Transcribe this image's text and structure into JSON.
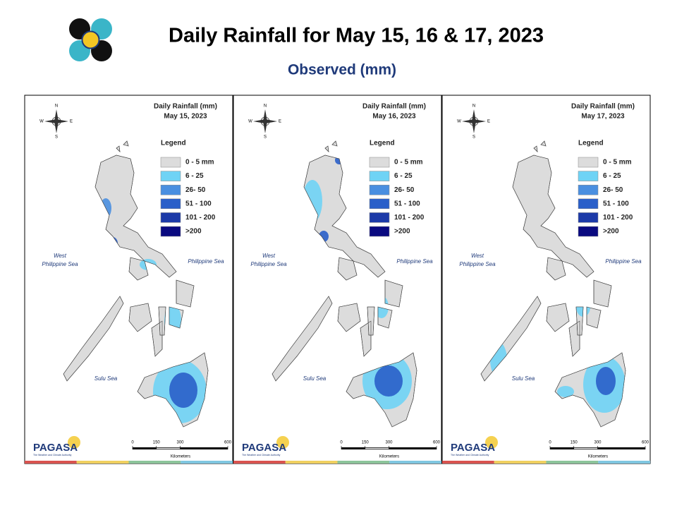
{
  "header": {
    "title": "Daily Rainfall for May 15, 16 & 17, 2023",
    "subtitle": "Observed (mm)"
  },
  "panels": [
    {
      "title": "Daily Rainfall (mm)",
      "date": "May 15, 2023"
    },
    {
      "title": "Daily Rainfall (mm)",
      "date": "May 16, 2023"
    },
    {
      "title": "Daily Rainfall (mm)",
      "date": "May 17, 2023"
    }
  ],
  "legend": {
    "title": "Legend",
    "items": [
      {
        "label": "0 - 5 mm",
        "color": "#dcdcdc"
      },
      {
        "label": "6 - 25",
        "color": "#6fd3f5"
      },
      {
        "label": "26- 50",
        "color": "#4a8fe0"
      },
      {
        "label": "51 - 100",
        "color": "#2a5fc9"
      },
      {
        "label": "101 - 200",
        "color": "#1c3aa8"
      },
      {
        "label": ">200",
        "color": "#0a0a80"
      }
    ]
  },
  "seas": {
    "west": [
      "West",
      "Philippine Sea"
    ],
    "east": "Philippine Sea",
    "sulu": "Sulu Sea"
  },
  "compass": {
    "n": "N",
    "s": "S",
    "w": "W",
    "e": "E"
  },
  "scale": {
    "ticks": [
      0,
      150,
      300,
      600
    ],
    "unit": "Kilometers"
  },
  "logo": {
    "name": "PAGASA",
    "tagline": "The Weather and Climate Authority"
  }
}
